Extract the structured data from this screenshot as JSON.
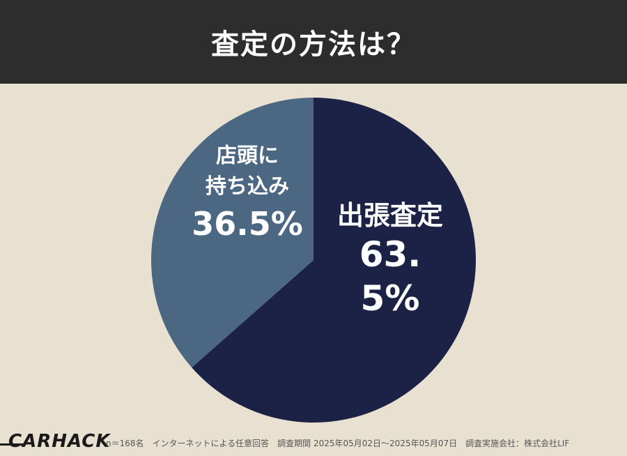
{
  "header": {
    "title": "査定の方法は？",
    "background_color": "#2d2d2d"
  },
  "chart_data": {
    "type": "pie",
    "title": "査定の方法は？",
    "slices": [
      {
        "label": "出張査定",
        "value": 63.5,
        "value_text": "63.5%",
        "color": "#1b2245"
      },
      {
        "label_line1": "店頭に",
        "label_line2": "持ち込み",
        "label": "店頭に持ち込み",
        "value": 36.5,
        "value_text": "36.5%",
        "color": "#4c6782"
      }
    ],
    "start_angle": "12 o'clock",
    "direction": "clockwise"
  },
  "footer": {
    "logo": "CARHACK",
    "note": "n＝168名　インターネットによる任意回答　調査期間 2025年05月02日～2025年05月07日　調査実施会社：株式会社LIF"
  },
  "colors": {
    "page_background": "#e8e0d0",
    "text_light": "#ffffff"
  }
}
